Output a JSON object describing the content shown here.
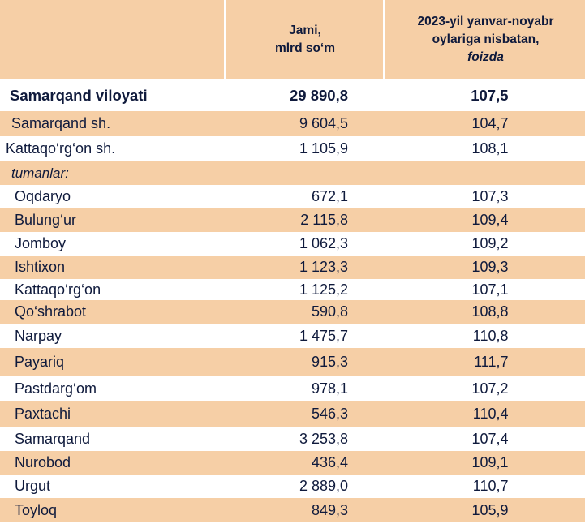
{
  "header": {
    "col2_line1": "Jami,",
    "col2_line2": "mlrd so‘m",
    "col3_line1": "2023-yil yanvar-noyabr",
    "col3_line2": "oylariga nisbatan,",
    "col3_line3": "foizda"
  },
  "total": {
    "name": "Samarqand viloyati",
    "jami": "29 890,8",
    "foizda": "107,5"
  },
  "cities": [
    {
      "name": "Samarqand sh.",
      "jami": "9 604,5",
      "foizda": "104,7"
    },
    {
      "name": "Kattaqo‘rg‘on sh.",
      "jami": "1 105,9",
      "foizda": "108,1"
    }
  ],
  "districts_label": "tumanlar:",
  "districts": [
    {
      "name": "Oqdaryo",
      "jami": "672,1",
      "foizda": "107,3"
    },
    {
      "name": "Bulung‘ur",
      "jami": "2 115,8",
      "foizda": "109,4"
    },
    {
      "name": "Jomboy",
      "jami": "1 062,3",
      "foizda": "109,2"
    },
    {
      "name": "Ishtixon",
      "jami": "1 123,3",
      "foizda": "109,3"
    },
    {
      "name": "Kattaqo‘rg‘on",
      "jami": "1 125,2",
      "foizda": "107,1"
    },
    {
      "name": "Qo‘shrabot",
      "jami": "590,8",
      "foizda": "108,8"
    },
    {
      "name": "Narpay",
      "jami": "1 475,7",
      "foizda": "110,8"
    },
    {
      "name": "Payariq",
      "jami": "915,3",
      "foizda": "111,7"
    },
    {
      "name": "Pastdarg‘om",
      "jami": "978,1",
      "foizda": "107,2"
    },
    {
      "name": "Paxtachi",
      "jami": "546,3",
      "foizda": "110,4"
    },
    {
      "name": "Samarqand",
      "jami": "3 253,8",
      "foizda": "107,4"
    },
    {
      "name": "Nurobod",
      "jami": "436,4",
      "foizda": "109,1"
    },
    {
      "name": "Urgut",
      "jami": "2 889,0",
      "foizda": "110,7"
    },
    {
      "name": "Toyloq",
      "jami": "849,3",
      "foizda": "105,9"
    }
  ]
}
